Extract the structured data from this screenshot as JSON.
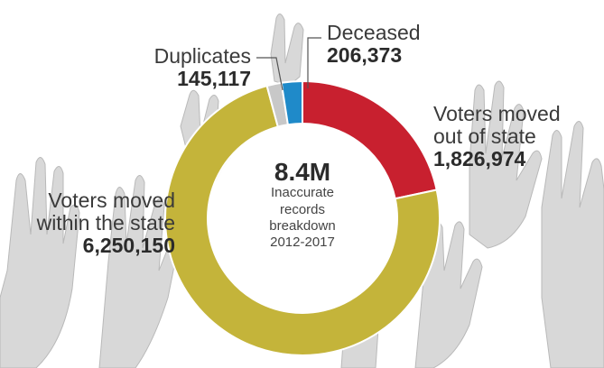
{
  "chart_data": {
    "type": "donut",
    "total_label": "8.4M",
    "center_caption": [
      "Inaccurate",
      "records",
      "breakdown",
      "2012-2017"
    ],
    "slices": [
      {
        "name": "Voters moved out of state",
        "value": 1826974,
        "value_label": "1,826,974",
        "color": "#c8202f"
      },
      {
        "name": "Voters moved within the state",
        "value": 6250150,
        "value_label": "6,250,150",
        "color": "#c4b43a"
      },
      {
        "name": "Duplicates",
        "value": 145117,
        "value_label": "145,117",
        "color": "#c8c8c8"
      },
      {
        "name": "Deceased",
        "value": 206373,
        "value_label": "206,373",
        "color": "#1f8ac9"
      }
    ]
  },
  "labels": {
    "out_of_state_line1": "Voters moved",
    "out_of_state_line2": "out of state",
    "within_line1": "Voters moved",
    "within_line2": "within the state",
    "duplicates": "Duplicates",
    "deceased": "Deceased"
  }
}
